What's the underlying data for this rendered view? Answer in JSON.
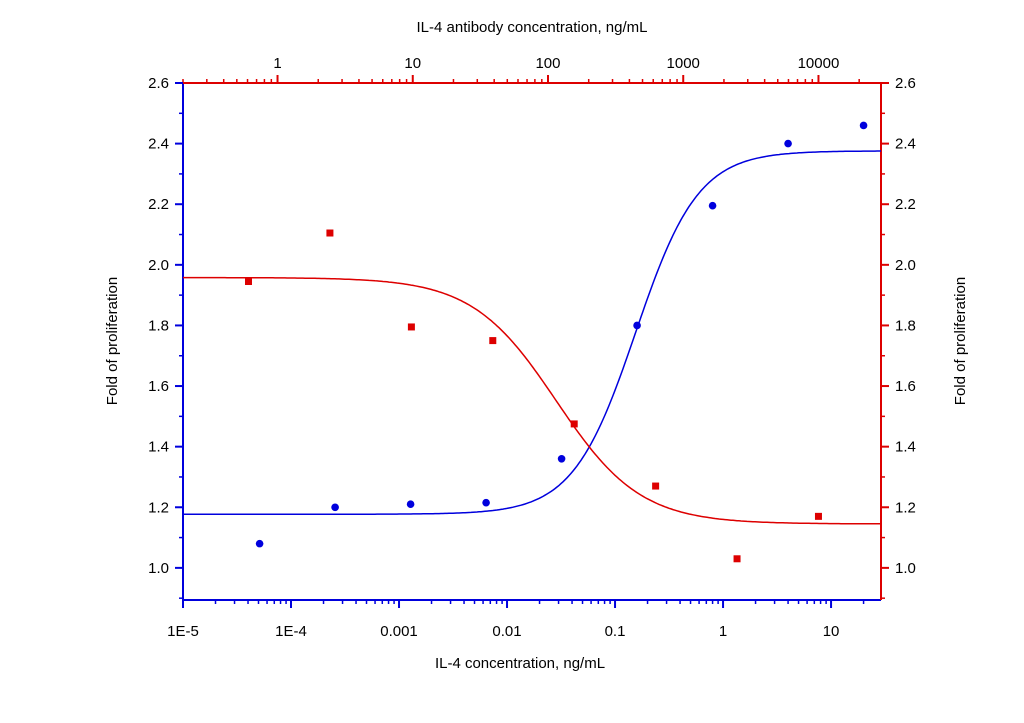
{
  "chart_data": {
    "type": "scatter",
    "xlabel_bottom": "IL-4  concentration, ng/mL",
    "xlabel_top": "IL-4 antibody concentration, ng/mL",
    "ylabel_left": "Fold of proliferation",
    "ylabel_right": "Fold of proliferation",
    "x_bottom": {
      "scale": "log",
      "range": [
        1e-05,
        29
      ],
      "ticks": [
        1e-05,
        0.0001,
        0.001,
        0.01,
        0.1,
        1,
        10
      ],
      "tick_labels": [
        "1E-5",
        "1E-4",
        "0.001",
        "0.01",
        "0.1",
        "1",
        "10"
      ],
      "color": "#0000dd"
    },
    "x_top": {
      "scale": "log",
      "range": [
        0.2,
        29000
      ],
      "ticks": [
        1,
        10,
        100,
        1000,
        10000
      ],
      "tick_labels": [
        "1",
        "10",
        "100",
        "1000",
        "10000"
      ],
      "color": "#dd0000"
    },
    "y_left": {
      "range": [
        0.894,
        2.6
      ],
      "ticks": [
        1.0,
        1.2,
        1.4,
        1.6,
        1.8,
        2.0,
        2.2,
        2.4,
        2.6
      ],
      "tick_labels": [
        "1.0",
        "1.2",
        "1.4",
        "1.6",
        "1.8",
        "2.0",
        "2.2",
        "2.4",
        "2.6"
      ],
      "color": "#0000dd"
    },
    "y_right": {
      "range": [
        0.894,
        2.6
      ],
      "ticks": [
        1.0,
        1.2,
        1.4,
        1.6,
        1.8,
        2.0,
        2.2,
        2.4,
        2.6
      ],
      "tick_labels": [
        "1.0",
        "1.2",
        "1.4",
        "1.6",
        "1.8",
        "2.0",
        "2.2",
        "2.4",
        "2.6"
      ],
      "color": "#dd0000"
    },
    "grid": false,
    "series": [
      {
        "axis": "bottom-left",
        "marker": "circle",
        "color": "#0000dd",
        "x": [
          5.12e-05,
          0.000256,
          0.00128,
          0.0064,
          0.032,
          0.16,
          0.8,
          4,
          20
        ],
        "y": [
          1.08,
          1.2,
          1.21,
          1.215,
          1.36,
          1.8,
          2.195,
          2.4,
          2.46
        ],
        "fit": {
          "bottom": 1.177,
          "top": 2.376,
          "ec50": 0.155,
          "hill": 1.5
        }
      },
      {
        "axis": "top-right",
        "marker": "square",
        "color": "#dd0000",
        "x": [
          0.61,
          2.44,
          9.77,
          39.06,
          156.25,
          625,
          2500,
          10000
        ],
        "y": [
          1.945,
          2.105,
          1.795,
          1.75,
          1.475,
          1.27,
          1.03,
          1.17
        ],
        "fit": {
          "bottom": 1.145,
          "top": 1.958,
          "ec50": 115,
          "hill": -1.4
        }
      }
    ]
  }
}
